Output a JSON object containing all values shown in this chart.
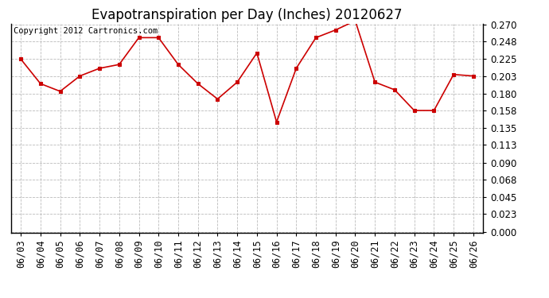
{
  "title": "Evapotranspiration per Day (Inches) 20120627",
  "copyright_text": "Copyright 2012 Cartronics.com",
  "x_labels": [
    "06/03",
    "06/04",
    "06/05",
    "06/06",
    "06/07",
    "06/08",
    "06/09",
    "06/10",
    "06/11",
    "06/12",
    "06/13",
    "06/14",
    "06/15",
    "06/16",
    "06/17",
    "06/18",
    "06/19",
    "06/20",
    "06/21",
    "06/22",
    "06/23",
    "06/24",
    "06/25",
    "06/26"
  ],
  "y_values": [
    0.225,
    0.193,
    0.183,
    0.203,
    0.213,
    0.218,
    0.253,
    0.253,
    0.218,
    0.193,
    0.173,
    0.195,
    0.233,
    0.143,
    0.213,
    0.253,
    0.263,
    0.275,
    0.195,
    0.185,
    0.158,
    0.158,
    0.205,
    0.203
  ],
  "line_color": "#cc0000",
  "marker_color": "#cc0000",
  "marker_style": "s",
  "marker_size": 3,
  "background_color": "#ffffff",
  "grid_color": "#bbbbbb",
  "ylim": [
    0.0,
    0.27
  ],
  "yticks": [
    0.0,
    0.023,
    0.045,
    0.068,
    0.09,
    0.113,
    0.135,
    0.158,
    0.18,
    0.203,
    0.225,
    0.248,
    0.27
  ],
  "title_fontsize": 12,
  "copyright_fontsize": 7.5,
  "tick_fontsize": 8.5,
  "fig_width": 6.9,
  "fig_height": 3.75,
  "dpi": 100
}
